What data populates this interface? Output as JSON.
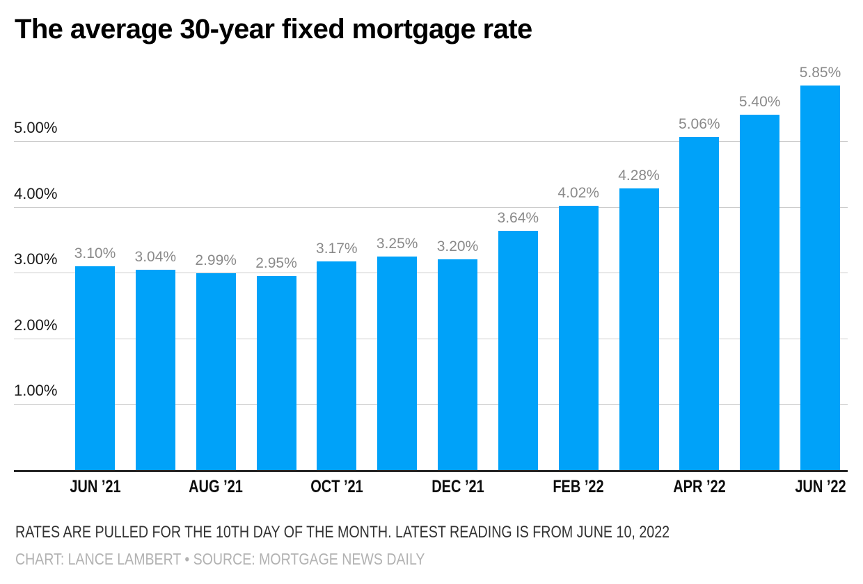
{
  "header": {
    "title": "The average 30-year fixed mortgage rate"
  },
  "footer": {
    "note": "RATES ARE PULLED FOR THE 10TH DAY OF THE MONTH. LATEST READING IS FROM JUNE 10, 2022",
    "credit": "CHART: LANCE LAMBERT • SOURCE: MORTGAGE NEWS DAILY"
  },
  "colors": {
    "bar": "#00a2f9",
    "gridline": "#cccccc",
    "axis_line": "#262626",
    "bar_label": "#8a8a8a",
    "y_tick": "#1a1a1a",
    "x_tick": "#0d0d0d",
    "note": "#333333",
    "credit": "#b2b2b2"
  },
  "chart_data": {
    "type": "bar",
    "title": "The average 30-year fixed mortgage rate",
    "grid": "horizontal-only",
    "legend": "none",
    "ylim": [
      0,
      6.2
    ],
    "y_ticks": [
      {
        "value": 1,
        "label": "1.00%"
      },
      {
        "value": 2,
        "label": "2.00%"
      },
      {
        "value": 3,
        "label": "3.00%"
      },
      {
        "value": 4,
        "label": "4.00%"
      },
      {
        "value": 5,
        "label": "5.00%"
      }
    ],
    "points": [
      {
        "value": 3.1,
        "label": "3.10%",
        "x_tick": "JUN ’21"
      },
      {
        "value": 3.04,
        "label": "3.04%",
        "x_tick": null
      },
      {
        "value": 2.99,
        "label": "2.99%",
        "x_tick": "AUG ’21"
      },
      {
        "value": 2.95,
        "label": "2.95%",
        "x_tick": null
      },
      {
        "value": 3.17,
        "label": "3.17%",
        "x_tick": "OCT ’21"
      },
      {
        "value": 3.25,
        "label": "3.25%",
        "x_tick": null
      },
      {
        "value": 3.2,
        "label": "3.20%",
        "x_tick": "DEC ’21"
      },
      {
        "value": 3.64,
        "label": "3.64%",
        "x_tick": null
      },
      {
        "value": 4.02,
        "label": "4.02%",
        "x_tick": "FEB ’22"
      },
      {
        "value": 4.28,
        "label": "4.28%",
        "x_tick": null
      },
      {
        "value": 5.06,
        "label": "5.06%",
        "x_tick": "APR ’22"
      },
      {
        "value": 5.4,
        "label": "5.40%",
        "x_tick": null
      },
      {
        "value": 5.85,
        "label": "5.85%",
        "x_tick": "JUN ’22"
      }
    ]
  }
}
